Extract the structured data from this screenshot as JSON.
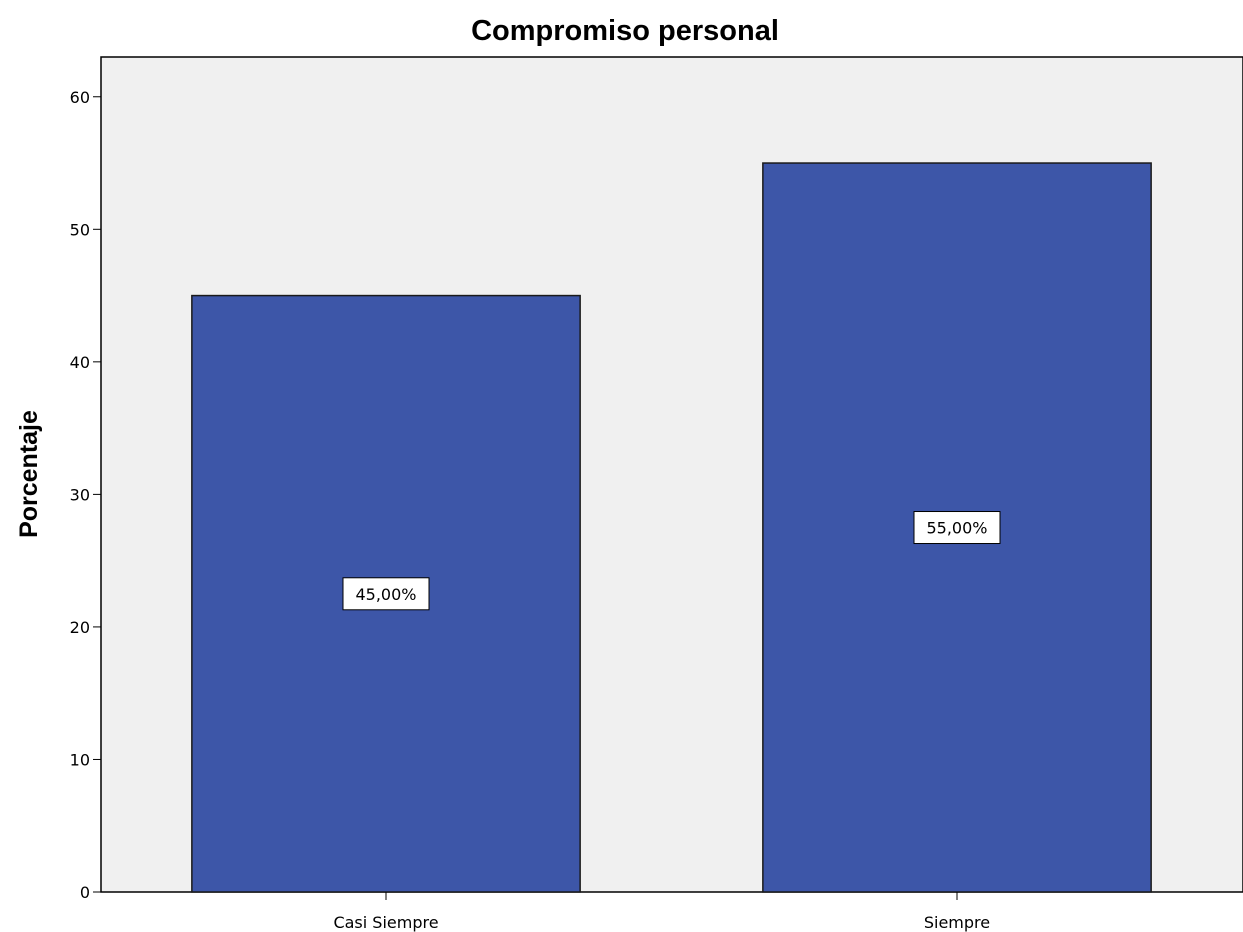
{
  "chart_data": {
    "type": "bar",
    "title": "Compromiso personal",
    "xlabel": "",
    "ylabel": "Porcentaje",
    "categories": [
      "Casi Siempre",
      "Siempre"
    ],
    "values": [
      45,
      55
    ],
    "data_labels": [
      "45,00%",
      "55,00%"
    ],
    "ylim": [
      0,
      63
    ],
    "yticks": [
      0,
      10,
      20,
      30,
      40,
      50,
      60
    ],
    "grid": false,
    "colors": {
      "bar": "#3d56a8",
      "plot_bg": "#f0f0f0",
      "bar_edge": "#1a1a1a"
    }
  }
}
